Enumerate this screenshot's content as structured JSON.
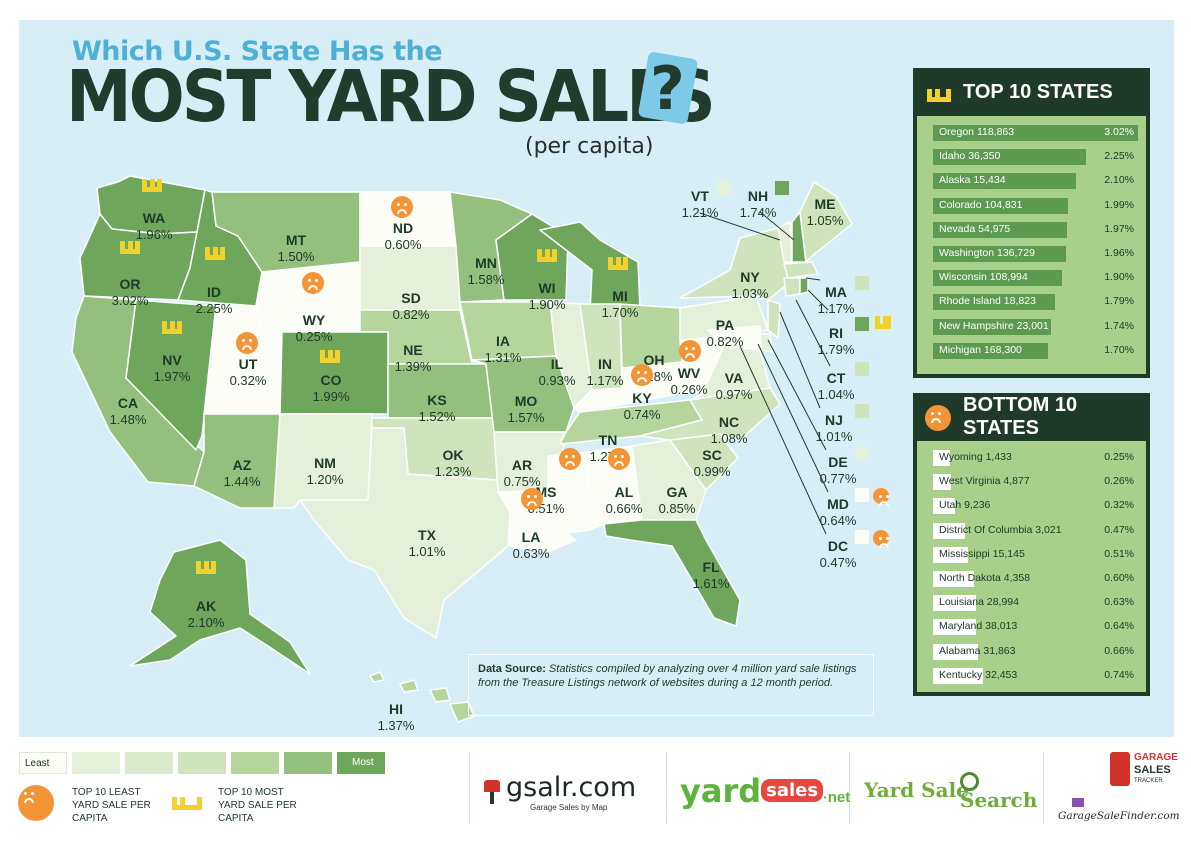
{
  "title": {
    "line1": "Which U.S. State Has the",
    "line2": "MOST YARD SALES",
    "qmark": "?",
    "sub": "(per capita)"
  },
  "colors": {
    "panel": "#d8eef7",
    "dark": "#203a2a",
    "bar": "#5c9a4f",
    "box_bg": "#a9d08a",
    "sad": "#f39437",
    "crown": "#f3d02a",
    "shade1": "#fbfdf6",
    "shade2": "#e5f0da",
    "shade3": "#cfe3bd",
    "shade4": "#b5d59d",
    "shade5": "#93c17d",
    "shade6": "#6ea75c"
  },
  "states": [
    {
      "ab": "WA",
      "pct": "1.96%",
      "marker": "crown"
    },
    {
      "ab": "OR",
      "pct": "3.02%",
      "marker": "crown"
    },
    {
      "ab": "ID",
      "pct": "2.25%",
      "marker": "crown"
    },
    {
      "ab": "MT",
      "pct": "1.50%"
    },
    {
      "ab": "ND",
      "pct": "0.60%",
      "marker": "sad"
    },
    {
      "ab": "MN",
      "pct": "1.58%"
    },
    {
      "ab": "WI",
      "pct": "1.90%",
      "marker": "crown"
    },
    {
      "ab": "MI",
      "pct": "1.70%",
      "marker": "crown"
    },
    {
      "ab": "SD",
      "pct": "0.82%"
    },
    {
      "ab": "WY",
      "pct": "0.25%",
      "marker": "sad"
    },
    {
      "ab": "NV",
      "pct": "1.97%",
      "marker": "crown"
    },
    {
      "ab": "UT",
      "pct": "0.32%",
      "marker": "sad"
    },
    {
      "ab": "CA",
      "pct": "1.48%"
    },
    {
      "ab": "AZ",
      "pct": "1.44%"
    },
    {
      "ab": "CO",
      "pct": "1.99%",
      "marker": "crown"
    },
    {
      "ab": "NE",
      "pct": "1.39%"
    },
    {
      "ab": "IA",
      "pct": "1.31%"
    },
    {
      "ab": "IL",
      "pct": "0.93%"
    },
    {
      "ab": "IN",
      "pct": "1.17%"
    },
    {
      "ab": "OH",
      "pct": "1.28%"
    },
    {
      "ab": "KS",
      "pct": "1.52%"
    },
    {
      "ab": "MO",
      "pct": "1.57%"
    },
    {
      "ab": "NM",
      "pct": "1.20%"
    },
    {
      "ab": "OK",
      "pct": "1.23%"
    },
    {
      "ab": "TX",
      "pct": "1.01%"
    },
    {
      "ab": "AR",
      "pct": "0.75%"
    },
    {
      "ab": "LA",
      "pct": "0.63%",
      "marker": "sad"
    },
    {
      "ab": "MS",
      "pct": "0.51%",
      "marker": "sad"
    },
    {
      "ab": "AL",
      "pct": "0.66%",
      "marker": "sad"
    },
    {
      "ab": "TN",
      "pct": "1.27%"
    },
    {
      "ab": "KY",
      "pct": "0.74%",
      "marker": "sad"
    },
    {
      "ab": "WV",
      "pct": "0.26%",
      "marker": "sad"
    },
    {
      "ab": "VA",
      "pct": "0.97%"
    },
    {
      "ab": "NC",
      "pct": "1.08%"
    },
    {
      "ab": "SC",
      "pct": "0.99%"
    },
    {
      "ab": "GA",
      "pct": "0.85%"
    },
    {
      "ab": "FL",
      "pct": "1.61%"
    },
    {
      "ab": "PA",
      "pct": "0.82%"
    },
    {
      "ab": "NY",
      "pct": "1.03%"
    },
    {
      "ab": "VT",
      "pct": "1.21%"
    },
    {
      "ab": "NH",
      "pct": "1.74%",
      "marker": "crown"
    },
    {
      "ab": "ME",
      "pct": "1.05%"
    },
    {
      "ab": "MA",
      "pct": "1.17%"
    },
    {
      "ab": "RI",
      "pct": "1.79%",
      "marker": "crown"
    },
    {
      "ab": "CT",
      "pct": "1.04%"
    },
    {
      "ab": "NJ",
      "pct": "1.01%"
    },
    {
      "ab": "DE",
      "pct": "0.77%"
    },
    {
      "ab": "MD",
      "pct": "0.64%",
      "marker": "sad"
    },
    {
      "ab": "DC",
      "pct": "0.47%",
      "marker": "sad"
    },
    {
      "ab": "AK",
      "pct": "2.10%",
      "marker": "crown"
    },
    {
      "ab": "HI",
      "pct": "1.37%"
    }
  ],
  "top10": {
    "title": "TOP 10 STATES",
    "rows": [
      {
        "name": "Oregon 118,863",
        "pct": "3.02%",
        "value": 3.02
      },
      {
        "name": "Idaho 36,350",
        "pct": "2.25%",
        "value": 2.25
      },
      {
        "name": "Alaska 15,434",
        "pct": "2.10%",
        "value": 2.1
      },
      {
        "name": "Colorado 104,831",
        "pct": "1.99%",
        "value": 1.99
      },
      {
        "name": "Nevada 54,975",
        "pct": "1.97%",
        "value": 1.97
      },
      {
        "name": "Washington 136,729",
        "pct": "1.96%",
        "value": 1.96
      },
      {
        "name": "Wisconsin 108,994",
        "pct": "1.90%",
        "value": 1.9
      },
      {
        "name": "Rhode Island 18,823",
        "pct": "1.79%",
        "value": 1.79
      },
      {
        "name": "New Hampshire 23,001",
        "pct": "1.74%",
        "value": 1.74
      },
      {
        "name": "Michigan 168,300",
        "pct": "1.70%",
        "value": 1.7
      }
    ]
  },
  "bottom10": {
    "title": "BOTTOM 10 STATES",
    "rows": [
      {
        "name": "Wyoming 1,433",
        "pct": "0.25%",
        "value": 0.25
      },
      {
        "name": "West Virginia 4,877",
        "pct": "0.26%",
        "value": 0.26
      },
      {
        "name": "Utah 9,236",
        "pct": "0.32%",
        "value": 0.32
      },
      {
        "name": "District Of Columbia 3,021",
        "pct": "0.47%",
        "value": 0.47
      },
      {
        "name": "Mississippi 15,145",
        "pct": "0.51%",
        "value": 0.51
      },
      {
        "name": "North Dakota 4,358",
        "pct": "0.60%",
        "value": 0.6
      },
      {
        "name": "Louisiana 28,994",
        "pct": "0.63%",
        "value": 0.63
      },
      {
        "name": "Maryland 38,013",
        "pct": "0.64%",
        "value": 0.64
      },
      {
        "name": "Alabama 31,863",
        "pct": "0.66%",
        "value": 0.66
      },
      {
        "name": "Kentucky 32,453",
        "pct": "0.74%",
        "value": 0.74
      }
    ]
  },
  "source": {
    "label": "Data Source:",
    "text": "Statistics compiled by analyzing over 4 million yard sale listings from the Treasure Listings network of websites during a 12 month period."
  },
  "legend": {
    "least": "Least",
    "most": "Most",
    "sad_text": "TOP 10 LEAST YARD SALE PER CAPITA",
    "crown_text": "TOP 10 MOST YARD SALE PER CAPITA"
  },
  "logos": {
    "gsalr": "gsalr.com",
    "gsalr_sub": "Garage Sales by Map",
    "yard": "yard",
    "sales": "sales",
    "net": "net",
    "yss1": "Yard Sale",
    "yss2": "Search",
    "gsf": "GarageSaleFinder.com",
    "tracker1": "GARAGE",
    "tracker2": "SALES",
    "tracker3": "TRACKER"
  }
}
